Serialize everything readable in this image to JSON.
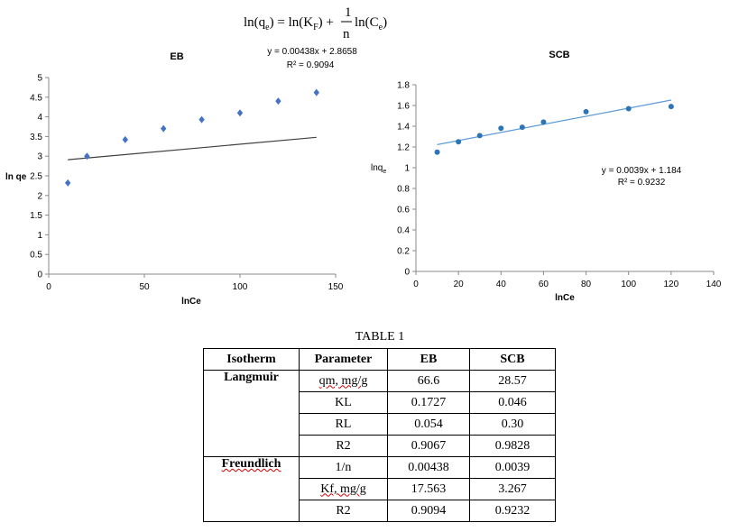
{
  "equation": {
    "lhs": "ln(q",
    "lhs_sub": "e",
    "eq": ") = ln(K",
    "kf_sub": "F",
    "plus": ") +",
    "frac_num": "1",
    "frac_den": "n",
    "rhs": "ln(C",
    "rhs_sub": "e",
    "close": ")"
  },
  "chart_data": [
    {
      "type": "scatter",
      "title": "EB",
      "xlabel": "lnCe",
      "ylabel": "ln qe",
      "xlim": [
        0,
        150
      ],
      "ylim": [
        0,
        5
      ],
      "xticks": [
        "0",
        "50",
        "100",
        "150"
      ],
      "yticks": [
        "0",
        "0.5",
        "1",
        "1.5",
        "2",
        "2.5",
        "3",
        "3.5",
        "4",
        "4.5",
        "5"
      ],
      "marker": "diamond",
      "marker_color": "#4472c4",
      "trendline_color": "#404040",
      "x": [
        10,
        20,
        40,
        60,
        80,
        100,
        120,
        140
      ],
      "y": [
        2.32,
        3.0,
        3.42,
        3.7,
        3.93,
        4.1,
        4.4,
        4.62
      ],
      "trendline": {
        "slope": 0.00438,
        "intercept": 2.8658,
        "x_range": [
          10,
          140
        ]
      },
      "equation_label": "y = 0.00438x + 2.8658",
      "r2_label": "R² = 0.9094"
    },
    {
      "type": "scatter",
      "title": "SCB",
      "xlabel": "lnCe",
      "ylabel": "lnqe",
      "xlim": [
        0,
        140
      ],
      "ylim": [
        0,
        1.8
      ],
      "xticks": [
        "0",
        "20",
        "40",
        "60",
        "80",
        "100",
        "120",
        "140"
      ],
      "yticks": [
        "0",
        "0.2",
        "0.4",
        "0.6",
        "0.8",
        "1",
        "1.2",
        "1.4",
        "1.6",
        "1.8"
      ],
      "marker": "circle",
      "marker_color": "#2e75b6",
      "trendline_color": "#5b9bd5",
      "x": [
        10,
        20,
        30,
        40,
        50,
        60,
        80,
        100,
        120
      ],
      "y": [
        1.15,
        1.25,
        1.31,
        1.38,
        1.39,
        1.44,
        1.54,
        1.57,
        1.59
      ],
      "trendline": {
        "slope": 0.0039,
        "intercept": 1.184,
        "x_range": [
          10,
          120
        ]
      },
      "equation_label": "y = 0.0039x + 1.184",
      "r2_label": "R² = 0.9232"
    },
    {
      "type": "table",
      "title": "TABLE 1",
      "headers": [
        "Isotherm",
        "Parameter",
        "EB",
        "SCB"
      ],
      "groups": [
        {
          "isotherm": "Langmuir",
          "rows": [
            {
              "parameter": "qm, mg/g",
              "eb": "66.6",
              "scb": "28.57"
            },
            {
              "parameter": "KL",
              "eb": "0.1727",
              "scb": "0.046"
            },
            {
              "parameter": "RL",
              "eb": "0.054",
              "scb": "0.30"
            },
            {
              "parameter": "R2",
              "eb": "0.9067",
              "scb": "0.9828"
            }
          ]
        },
        {
          "isotherm": "Freundlich",
          "rows": [
            {
              "parameter": "1/n",
              "eb": "0.00438",
              "scb": "0.0039"
            },
            {
              "parameter": "Kf, mg/g",
              "eb": "17.563",
              "scb": "3.267"
            },
            {
              "parameter": "R2",
              "eb": "0.9094",
              "scb": "0.9232"
            }
          ]
        }
      ]
    }
  ]
}
